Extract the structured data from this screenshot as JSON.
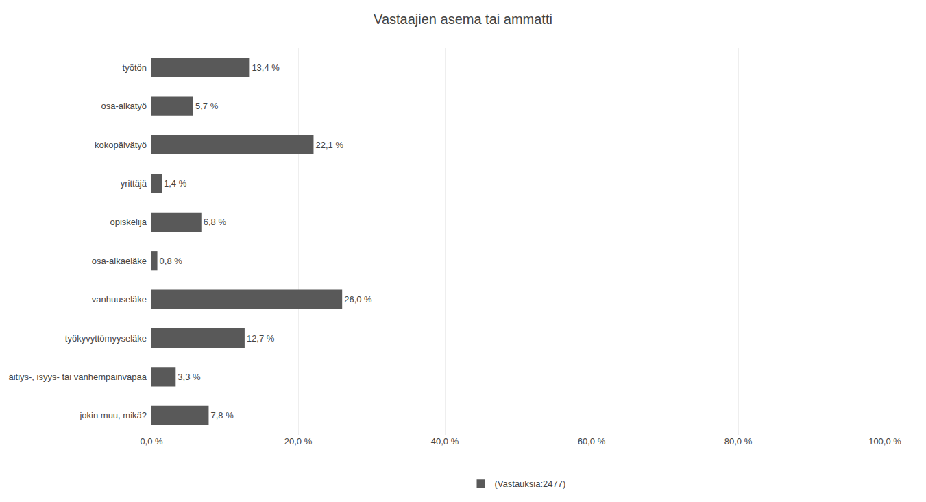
{
  "chart_data": {
    "type": "bar",
    "orientation": "horizontal",
    "title": "Vastaajien asema tai ammatti",
    "categories": [
      "työtön",
      "osa-aikatyö",
      "kokopäivätyö",
      "yrittäjä",
      "opiskelija",
      "osa-aikaeläke",
      "vanhuuseläke",
      "työkyvyttömyyseläke",
      "äitiys-, isyys- tai vanhempainvapaa",
      "jokin muu, mikä?"
    ],
    "series": [
      {
        "name": "(Vastauksia:2477)",
        "color": "#595959",
        "values": [
          13.4,
          5.7,
          22.1,
          1.4,
          6.8,
          0.8,
          26.0,
          12.7,
          3.3,
          7.8
        ],
        "value_labels": [
          "13,4 %",
          "5,7 %",
          "22,1 %",
          "1,4 %",
          "6,8 %",
          "0,8 %",
          "26,0 %",
          "12,7 %",
          "3,3 %",
          "7,8 %"
        ]
      }
    ],
    "xlim": [
      0,
      100
    ],
    "xticks": [
      {
        "value": 0,
        "label": "0,0 %"
      },
      {
        "value": 20,
        "label": "20,0 %"
      },
      {
        "value": 40,
        "label": "40,0 %"
      },
      {
        "value": 60,
        "label": "60,0 %"
      },
      {
        "value": 80,
        "label": "80,0 %"
      },
      {
        "value": 100,
        "label": "100,0 %"
      }
    ],
    "grid": true,
    "data_labels": true,
    "legend": "bottom"
  }
}
